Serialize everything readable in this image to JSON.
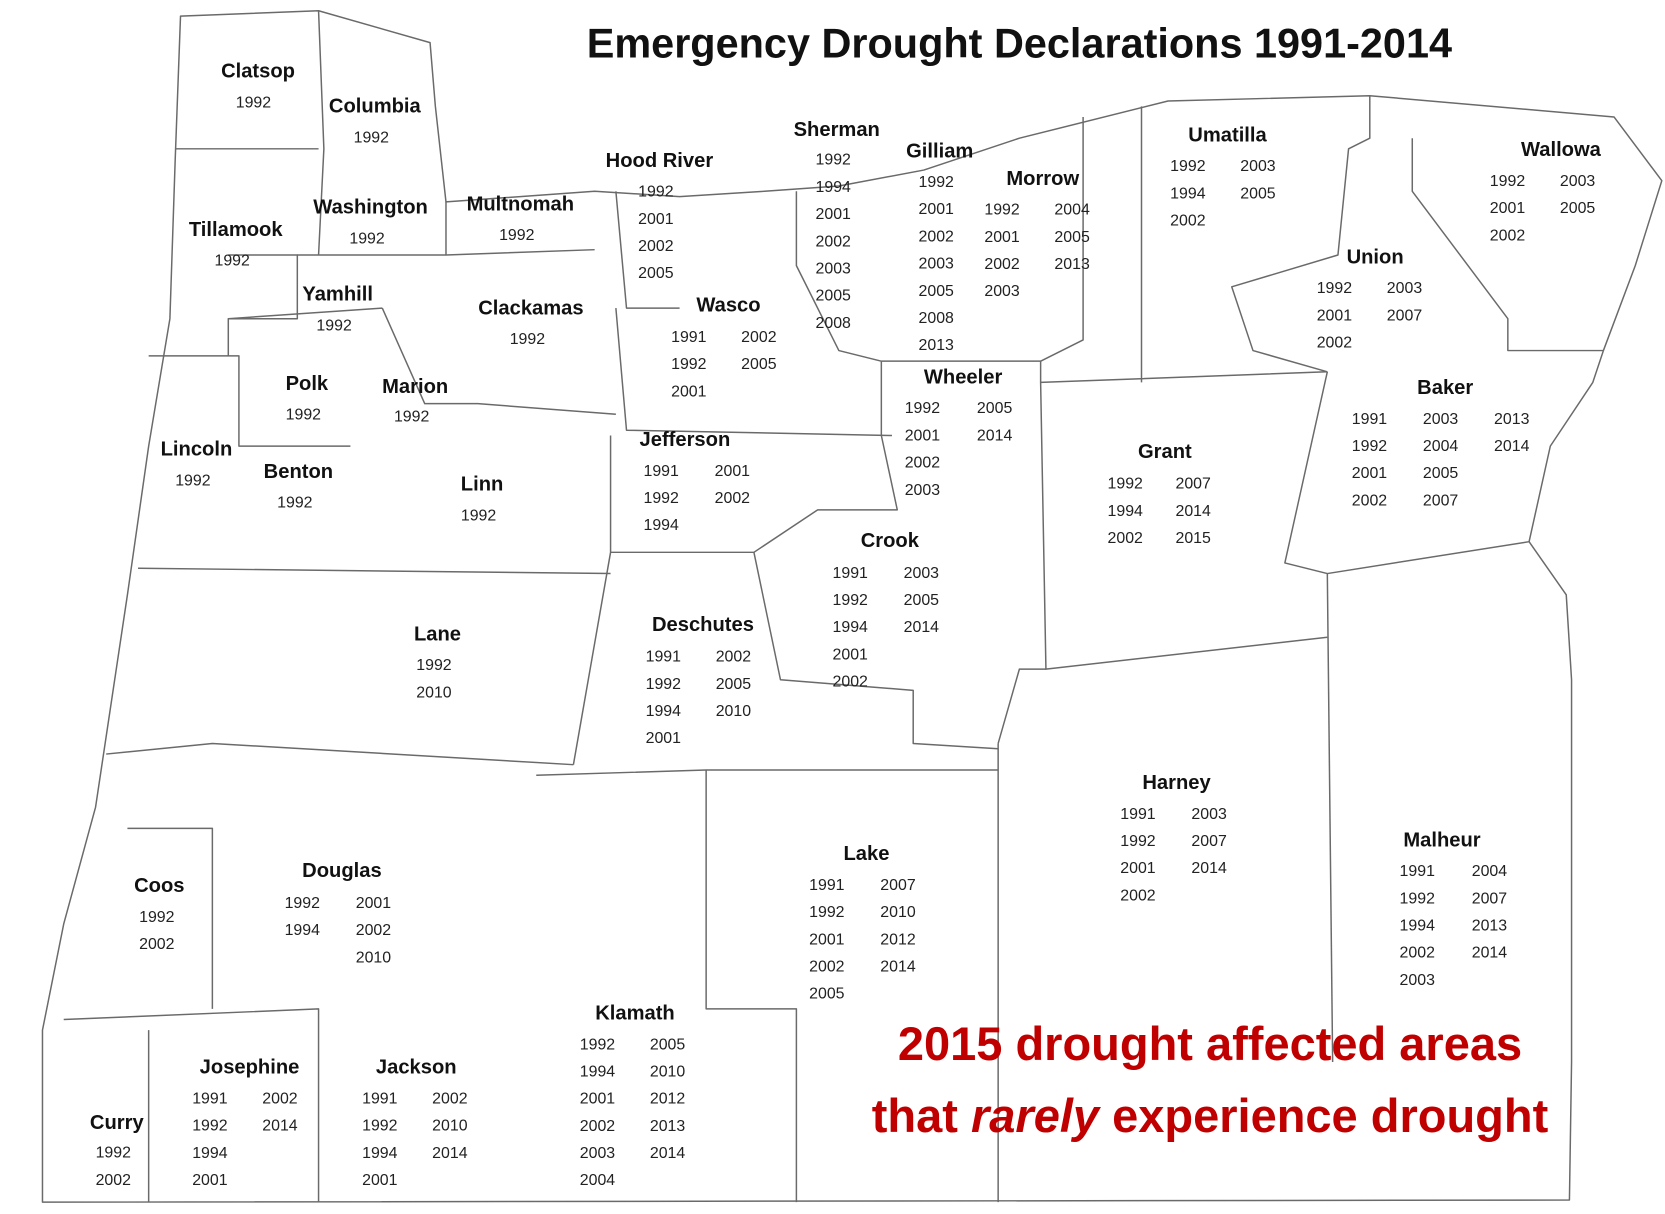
{
  "title": "Emergency Drought Declarations 1991-2014",
  "caption": {
    "line1": "2015 drought affected areas",
    "line2": [
      "that",
      "rarely",
      "experience drought"
    ]
  },
  "counties": [
    {
      "name": "Clatsop",
      "years": [
        [
          1992
        ]
      ]
    },
    {
      "name": "Columbia",
      "years": [
        [
          1992
        ]
      ]
    },
    {
      "name": "Tillamook",
      "years": [
        [
          1992
        ]
      ]
    },
    {
      "name": "Washington",
      "years": [
        [
          1992
        ]
      ]
    },
    {
      "name": "Multnomah",
      "years": [
        [
          1992
        ]
      ]
    },
    {
      "name": "Hood River",
      "years": [
        [
          1992,
          2001,
          2002,
          2005
        ]
      ]
    },
    {
      "name": "Sherman",
      "years": [
        [
          1992,
          1994,
          2001,
          2002,
          2003,
          2005,
          2008
        ]
      ]
    },
    {
      "name": "Gilliam",
      "years": [
        [
          1992,
          2001,
          2002,
          2003,
          2005,
          2008,
          2013
        ]
      ]
    },
    {
      "name": "Morrow",
      "years": [
        [
          1992,
          2001,
          2002,
          2003
        ],
        [
          2004,
          2005,
          2013
        ]
      ]
    },
    {
      "name": "Umatilla",
      "years": [
        [
          1992,
          1994,
          2002
        ],
        [
          2003,
          2005
        ]
      ]
    },
    {
      "name": "Wallowa",
      "years": [
        [
          1992,
          2001,
          2002
        ],
        [
          2003,
          2005
        ]
      ]
    },
    {
      "name": "Union",
      "years": [
        [
          1992,
          2001,
          2002
        ],
        [
          2003,
          2007
        ]
      ]
    },
    {
      "name": "Yamhill",
      "years": [
        [
          1992
        ]
      ]
    },
    {
      "name": "Clackamas",
      "years": [
        [
          1992
        ]
      ]
    },
    {
      "name": "Wasco",
      "years": [
        [
          1991,
          1992,
          2001
        ],
        [
          2002,
          2005
        ]
      ]
    },
    {
      "name": "Polk",
      "years": [
        [
          1992
        ]
      ]
    },
    {
      "name": "Marion",
      "years": [
        [
          1992
        ]
      ]
    },
    {
      "name": "Wheeler",
      "years": [
        [
          1992,
          2001,
          2002,
          2003
        ],
        [
          2005,
          2014
        ]
      ]
    },
    {
      "name": "Baker",
      "years": [
        [
          1991,
          1992,
          2001,
          2002
        ],
        [
          2003,
          2004,
          2005,
          2007
        ],
        [
          2013,
          2014
        ]
      ]
    },
    {
      "name": "Lincoln",
      "years": [
        [
          1992
        ]
      ]
    },
    {
      "name": "Benton",
      "years": [
        [
          1992
        ]
      ]
    },
    {
      "name": "Linn",
      "years": [
        [
          1992
        ]
      ]
    },
    {
      "name": "Jefferson",
      "years": [
        [
          1991,
          1992,
          1994
        ],
        [
          2001,
          2002
        ]
      ]
    },
    {
      "name": "Grant",
      "years": [
        [
          1992,
          1994,
          2002
        ],
        [
          2007,
          2014,
          2015
        ]
      ]
    },
    {
      "name": "Crook",
      "years": [
        [
          1991,
          1992,
          1994,
          2001,
          2002
        ],
        [
          2003,
          2005,
          2014
        ]
      ]
    },
    {
      "name": "Lane",
      "years": [
        [
          1992,
          2010
        ]
      ]
    },
    {
      "name": "Deschutes",
      "years": [
        [
          1991,
          1992,
          1994,
          2001
        ],
        [
          2002,
          2005,
          2010
        ]
      ]
    },
    {
      "name": "Harney",
      "years": [
        [
          1991,
          1992,
          2001,
          2002
        ],
        [
          2003,
          2007,
          2014
        ]
      ]
    },
    {
      "name": "Malheur",
      "years": [
        [
          1991,
          1992,
          1994,
          2002,
          2003
        ],
        [
          2004,
          2007,
          2013,
          2014
        ]
      ]
    },
    {
      "name": "Lake",
      "years": [
        [
          1991,
          1992,
          2001,
          2002,
          2005
        ],
        [
          2007,
          2010,
          2012,
          2014
        ]
      ]
    },
    {
      "name": "Coos",
      "years": [
        [
          1992,
          2002
        ]
      ]
    },
    {
      "name": "Douglas",
      "years": [
        [
          1992,
          1994
        ],
        [
          2001,
          2002,
          2010
        ]
      ]
    },
    {
      "name": "Klamath",
      "years": [
        [
          1992,
          1994,
          2001,
          2002,
          2003,
          2004
        ],
        [
          2005,
          2010,
          2012,
          2013,
          2014
        ]
      ]
    },
    {
      "name": "Josephine",
      "years": [
        [
          1991,
          1992,
          1994,
          2001
        ],
        [
          2002,
          2014
        ]
      ]
    },
    {
      "name": "Jackson",
      "years": [
        [
          1991,
          1992,
          1994,
          2001
        ],
        [
          2002,
          2010,
          2014
        ]
      ]
    },
    {
      "name": "Curry",
      "years": [
        [
          1992,
          2002
        ]
      ]
    }
  ]
}
